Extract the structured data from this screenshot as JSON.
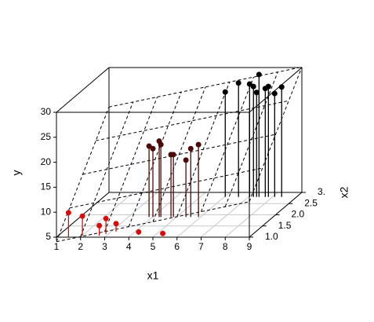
{
  "chart_data": {
    "type": "scatter3d",
    "x_label": "x1",
    "y_label": "y",
    "x2_label": "x2",
    "xlim": [
      1,
      9
    ],
    "xticks": [
      1,
      2,
      3,
      4,
      5,
      6,
      7,
      8,
      9
    ],
    "ylim": [
      5,
      30
    ],
    "yticks": [
      5,
      10,
      15,
      20,
      25,
      30
    ],
    "x2lim": [
      1,
      3
    ],
    "x2ticks": [
      {
        "value": 1,
        "label": "1.0"
      },
      1.5,
      {
        "value": 2,
        "label": "2.0"
      },
      2.5,
      {
        "value": 3,
        "label": "3."
      }
    ],
    "grid": true,
    "plane": {
      "intercept": -5.9,
      "x1": 1,
      "x2": 9
    },
    "series": [
      {
        "color": "#d01010",
        "x": [
          1.5,
          2.0,
          2.7,
          2.9,
          3.2,
          4.3,
          5.3
        ],
        "x2": [
          1.0,
          1.07,
          1.07,
          1.14,
          1.25,
          1.1,
          1.1
        ],
        "values": [
          9.9,
          8.9,
          7.0,
          8.1,
          6.6,
          5.6,
          5.3
        ]
      },
      {
        "color": "#4a0a0a",
        "x": [
          3.86,
          4.02,
          4.28,
          4.35,
          4.77,
          4.87,
          5.39,
          5.59,
          5.91
        ],
        "x2": [
          1.9,
          1.9,
          1.9,
          1.9,
          1.9,
          1.9,
          1.9,
          1.9,
          1.9
        ],
        "values": [
          19.2,
          18.7,
          20.2,
          19.5,
          17.5,
          17.5,
          16.4,
          18.7,
          19.5
        ]
      },
      {
        "color": "#000000",
        "x": [
          6.04,
          6.59,
          7.05,
          7.21,
          7.34,
          7.44,
          7.7,
          7.83,
          8.09,
          8.38
        ],
        "x2": [
          2.8,
          2.8,
          2.8,
          2.8,
          2.8,
          2.8,
          2.8,
          2.8,
          2.8,
          2.8
        ],
        "values": [
          26.0,
          27.8,
          27.6,
          27.1,
          25.9,
          29.5,
          26.7,
          27.1,
          25.7,
          27.0
        ]
      }
    ]
  }
}
